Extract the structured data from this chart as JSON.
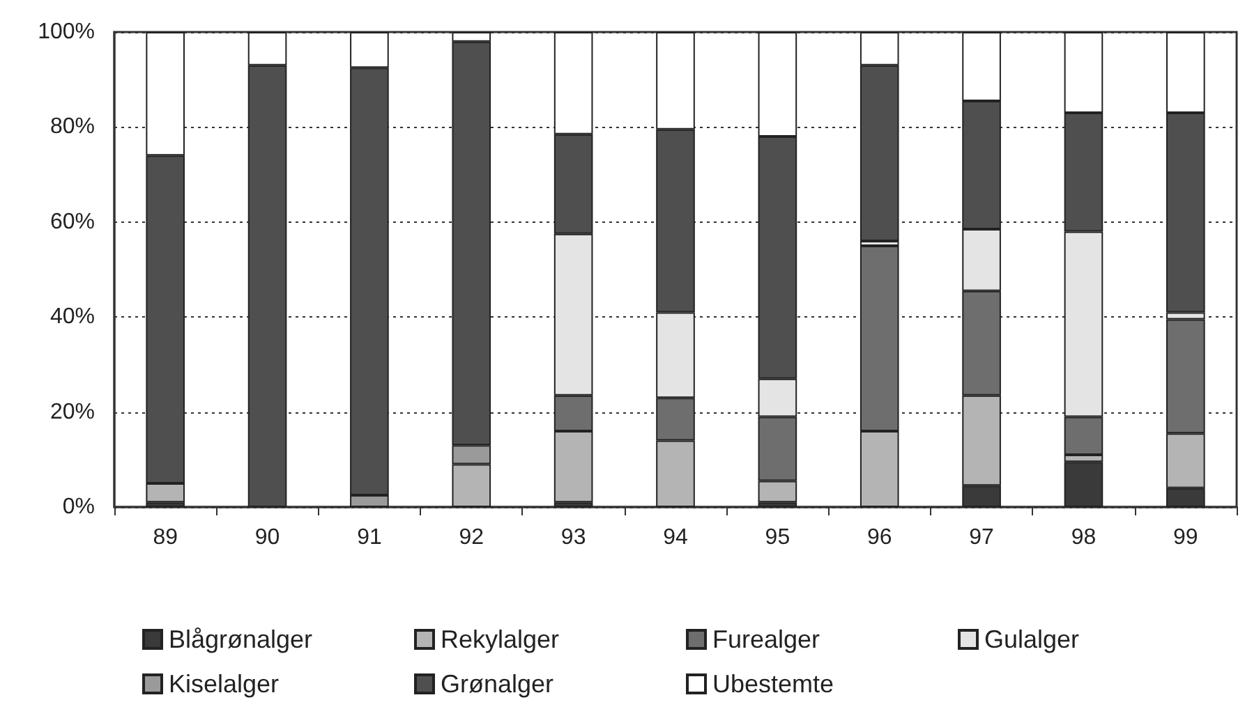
{
  "chart_data": {
    "type": "bar",
    "stacked": true,
    "categories": [
      "89",
      "90",
      "91",
      "92",
      "93",
      "94",
      "95",
      "96",
      "97",
      "98",
      "99"
    ],
    "series": [
      {
        "name": "Blågrønalger",
        "color": "#3a3a3a",
        "values": [
          1,
          null,
          null,
          null,
          1,
          null,
          1,
          null,
          4.5,
          9.5,
          4
        ]
      },
      {
        "name": "Rekylalger",
        "color": "#b4b4b4",
        "values": [
          4,
          null,
          null,
          9,
          15,
          14,
          4.5,
          16,
          19,
          1.5,
          11.5
        ]
      },
      {
        "name": "Furealger",
        "color": "#6e6e6e",
        "values": [
          null,
          null,
          null,
          null,
          7.5,
          9,
          13.5,
          39,
          22,
          8,
          24
        ]
      },
      {
        "name": "Gulalger",
        "color": "#e4e4e4",
        "values": [
          null,
          null,
          null,
          null,
          34,
          18,
          8,
          1,
          13,
          39,
          1.5
        ]
      },
      {
        "name": "Kiselalger",
        "color": "#9a9a9a",
        "values": [
          null,
          null,
          2.5,
          4,
          null,
          null,
          null,
          null,
          null,
          null,
          null
        ]
      },
      {
        "name": "Grønalger",
        "color": "#4f4f4f",
        "values": [
          69,
          93,
          90,
          85,
          21,
          38.5,
          51,
          37,
          27,
          25,
          42
        ]
      },
      {
        "name": "Ubestemte",
        "color": "#ffffff",
        "values": [
          26,
          7,
          7.5,
          2,
          21.5,
          20.5,
          22,
          7,
          14.5,
          17,
          17
        ]
      }
    ],
    "ylim": [
      0,
      100
    ],
    "yticks": [
      {
        "value": 0,
        "label": "0%"
      },
      {
        "value": 20,
        "label": "20%"
      },
      {
        "value": 40,
        "label": "40%"
      },
      {
        "value": 60,
        "label": "60%"
      },
      {
        "value": 80,
        "label": "80%"
      },
      {
        "value": 100,
        "label": "100%"
      }
    ],
    "grid": "y",
    "legend": "bottom"
  }
}
